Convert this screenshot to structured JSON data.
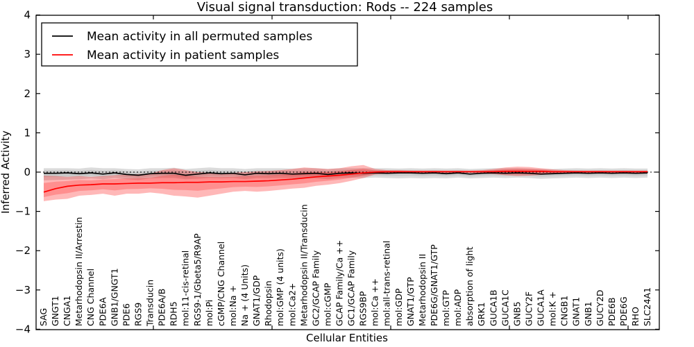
{
  "chart_data": {
    "type": "line",
    "title": "Visual signal transduction: Rods -- 224 samples",
    "xlabel": "Cellular Entities",
    "ylabel": "Inferred Activity",
    "ylim": [
      -4,
      4
    ],
    "ytick_values": [
      4,
      3,
      2,
      1,
      0,
      -1,
      -2,
      -3,
      -4
    ],
    "ytick_labels": [
      "4",
      "3",
      "2",
      "1",
      "0",
      "−1",
      "−2",
      "−3",
      "−4"
    ],
    "grid": false,
    "zero_line_style": "dotted",
    "legend_position": "upper-left",
    "legend": [
      {
        "label": "Mean activity in all permuted samples",
        "color": "#000000"
      },
      {
        "label": "Mean activity in patient samples",
        "color": "#ff0000"
      }
    ],
    "categories": [
      "SAG",
      "GNGT1",
      "CNGA1",
      "Metarhodopsin II/Arrestin",
      "CNG Channel",
      "PDE6A",
      "GNB1/GNGT1",
      "PDE6",
      "RGS9",
      "Transducin",
      "PDE6A/B",
      "RDH5",
      "mol:11-cis-retinal",
      "RGS9-1/Gbeta5/R9AP",
      "mol:Pi",
      "cGMP/CNG Channel",
      "mol:Na +",
      "Na + (4 Units)",
      "GNAT1/GDP",
      "Rhodopsin",
      "mol:GMP (4 units)",
      "mol:Ca2+",
      "Metarhodopsin II/Transducin",
      "GC2/GCAP Family",
      "mol:cGMP",
      "GCAP Family/Ca ++",
      "GC1/GCAP Family",
      "RGS9BP",
      "mol:Ca ++",
      "mol:all-trans-retinal",
      "mol:GDP",
      "GNAT1/GTP",
      "Metarhodopsin II",
      "PDE6G/GNAT1/GTP",
      "mol:GTP",
      "mol:ADP",
      "absorption of light",
      "GRK1",
      "GUCA1B",
      "GUCA1C",
      "GNB5",
      "GUCY2F",
      "GUCA1A",
      "mol:K +",
      "CNGB1",
      "GNAT1",
      "GNB1",
      "GUCY2D",
      "PDE6B",
      "PDE6G",
      "RHO",
      "SLC24A1"
    ],
    "series": [
      {
        "name": "Mean activity in all permuted samples",
        "color": "#000000",
        "values": [
          -0.03,
          -0.03,
          -0.02,
          -0.04,
          -0.02,
          -0.05,
          -0.02,
          -0.06,
          -0.08,
          -0.04,
          -0.03,
          -0.03,
          -0.08,
          -0.05,
          -0.02,
          -0.04,
          -0.03,
          -0.07,
          -0.03,
          -0.04,
          -0.03,
          -0.05,
          -0.04,
          -0.03,
          -0.06,
          -0.03,
          -0.02,
          -0.03,
          -0.02,
          -0.03,
          -0.02,
          -0.02,
          -0.03,
          -0.02,
          -0.04,
          -0.02,
          -0.05,
          -0.03,
          -0.02,
          -0.03,
          -0.02,
          -0.03,
          -0.05,
          -0.04,
          -0.03,
          -0.02,
          -0.03,
          -0.02,
          -0.03,
          -0.02,
          -0.03,
          -0.02
        ]
      },
      {
        "name": "Mean activity in patient samples",
        "color": "#ff0000",
        "values": [
          -0.51,
          -0.42,
          -0.36,
          -0.33,
          -0.32,
          -0.3,
          -0.3,
          -0.29,
          -0.28,
          -0.28,
          -0.27,
          -0.27,
          -0.26,
          -0.26,
          -0.25,
          -0.25,
          -0.24,
          -0.24,
          -0.23,
          -0.22,
          -0.2,
          -0.18,
          -0.15,
          -0.12,
          -0.1,
          -0.08,
          -0.05,
          -0.02,
          0.0,
          0.01,
          0.01,
          0.01,
          0.01,
          0.01,
          0.01,
          0.01,
          0.01,
          0.01,
          0.01,
          0.02,
          0.02,
          0.02,
          0.02,
          0.01,
          0.01,
          0.01,
          0.01,
          0.01,
          0.01,
          0.01,
          0.01,
          0.01
        ]
      }
    ],
    "bands": [
      {
        "name": "permuted-samples-range",
        "color": "#999999",
        "opacity": 0.35,
        "upper": [
          0.1,
          0.1,
          0.1,
          0.09,
          0.12,
          0.1,
          0.1,
          0.08,
          0.07,
          0.1,
          0.1,
          0.11,
          0.08,
          0.1,
          0.12,
          0.1,
          0.1,
          0.08,
          0.1,
          0.1,
          0.1,
          0.09,
          0.1,
          0.1,
          0.08,
          0.1,
          0.1,
          0.1,
          0.1,
          0.1,
          0.09,
          0.1,
          0.09,
          0.1,
          0.09,
          0.1,
          0.08,
          0.09,
          0.1,
          0.1,
          0.1,
          0.09,
          0.08,
          0.08,
          0.09,
          0.1,
          0.09,
          0.1,
          0.09,
          0.1,
          0.09,
          0.09
        ],
        "lower": [
          -0.21,
          -0.2,
          -0.19,
          -0.18,
          -0.16,
          -0.18,
          -0.15,
          -0.18,
          -0.2,
          -0.16,
          -0.15,
          -0.15,
          -0.18,
          -0.17,
          -0.15,
          -0.16,
          -0.15,
          -0.18,
          -0.15,
          -0.16,
          -0.15,
          -0.16,
          -0.15,
          -0.16,
          -0.18,
          -0.15,
          -0.14,
          -0.15,
          -0.14,
          -0.15,
          -0.16,
          -0.15,
          -0.16,
          -0.15,
          -0.16,
          -0.14,
          -0.16,
          -0.15,
          -0.14,
          -0.15,
          -0.14,
          -0.15,
          -0.17,
          -0.16,
          -0.15,
          -0.14,
          -0.15,
          -0.14,
          -0.15,
          -0.14,
          -0.15,
          -0.14
        ]
      },
      {
        "name": "patient-samples-range",
        "color": "#ff0000",
        "opacity": 0.28,
        "upper": [
          -0.09,
          -0.1,
          -0.12,
          -0.1,
          -0.12,
          -0.1,
          -0.08,
          -0.06,
          -0.05,
          -0.04,
          0.05,
          0.1,
          0.05,
          0.0,
          -0.02,
          -0.03,
          -0.02,
          0.0,
          0.02,
          0.03,
          0.05,
          0.08,
          0.12,
          0.1,
          0.08,
          0.1,
          0.15,
          0.18,
          0.08,
          0.05,
          0.05,
          0.04,
          0.04,
          0.04,
          0.04,
          0.04,
          0.04,
          0.05,
          0.08,
          0.12,
          0.14,
          0.13,
          0.1,
          0.07,
          0.05,
          0.04,
          0.04,
          0.04,
          0.04,
          0.04,
          0.04,
          0.04
        ],
        "lower": [
          -0.74,
          -0.7,
          -0.68,
          -0.6,
          -0.58,
          -0.55,
          -0.6,
          -0.55,
          -0.55,
          -0.52,
          -0.55,
          -0.6,
          -0.62,
          -0.65,
          -0.6,
          -0.55,
          -0.5,
          -0.48,
          -0.5,
          -0.48,
          -0.45,
          -0.42,
          -0.4,
          -0.35,
          -0.32,
          -0.28,
          -0.22,
          -0.15,
          -0.06,
          -0.04,
          -0.03,
          -0.03,
          -0.02,
          -0.02,
          -0.02,
          -0.02,
          -0.02,
          -0.03,
          -0.05,
          -0.08,
          -0.1,
          -0.09,
          -0.07,
          -0.05,
          -0.03,
          -0.02,
          -0.02,
          -0.02,
          -0.02,
          -0.02,
          -0.02,
          -0.02
        ]
      }
    ]
  }
}
